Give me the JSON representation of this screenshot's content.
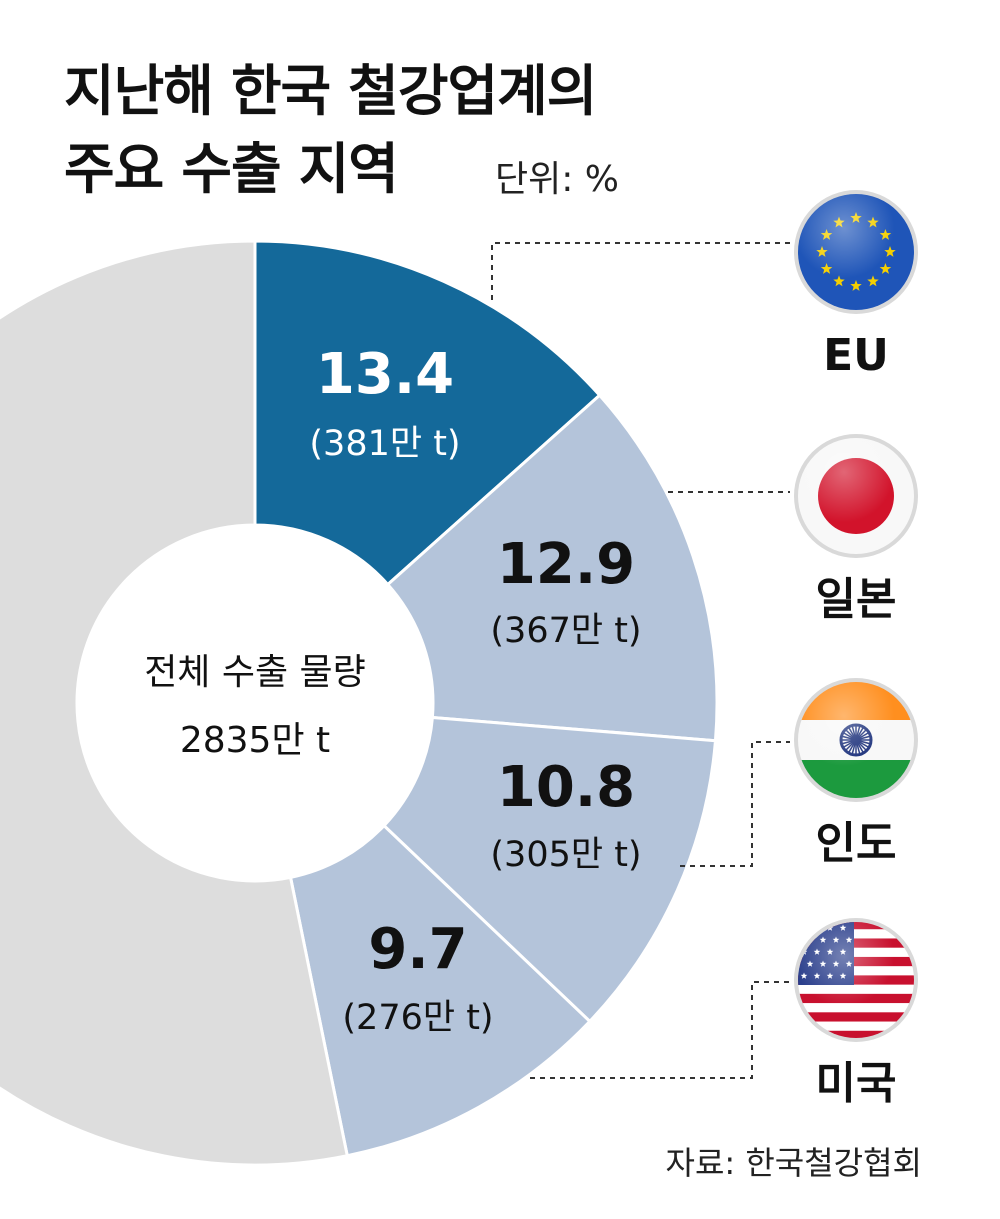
{
  "title_line1": "지난해 한국 철강업계의",
  "title_line2": "주요 수출 지역",
  "unit": "단위: %",
  "source": "자료: 한국철강협회",
  "center_label": "전체 수출 물량",
  "center_value": "2835만 t",
  "colors": {
    "highlight": "#14699a",
    "segment": "#b4c4da",
    "other": "#dddddd",
    "leader": "#333333"
  },
  "chart_data": {
    "type": "pie",
    "title": "지난해 한국 철강업계의 주요 수출 지역",
    "unit": "%",
    "total": "2835만 t",
    "slices": [
      {
        "name": "EU",
        "value": 13.4,
        "value_label": "13.4",
        "volume_label": "(381만 t)",
        "icon": "eu-flag"
      },
      {
        "name": "일본",
        "value": 12.9,
        "value_label": "12.9",
        "volume_label": "(367만 t)",
        "icon": "japan-flag"
      },
      {
        "name": "인도",
        "value": 10.8,
        "value_label": "10.8",
        "volume_label": "(305만 t)",
        "icon": "india-flag"
      },
      {
        "name": "미국",
        "value": 9.7,
        "value_label": "9.7",
        "volume_label": "(276만 t)",
        "icon": "usa-flag"
      }
    ]
  }
}
